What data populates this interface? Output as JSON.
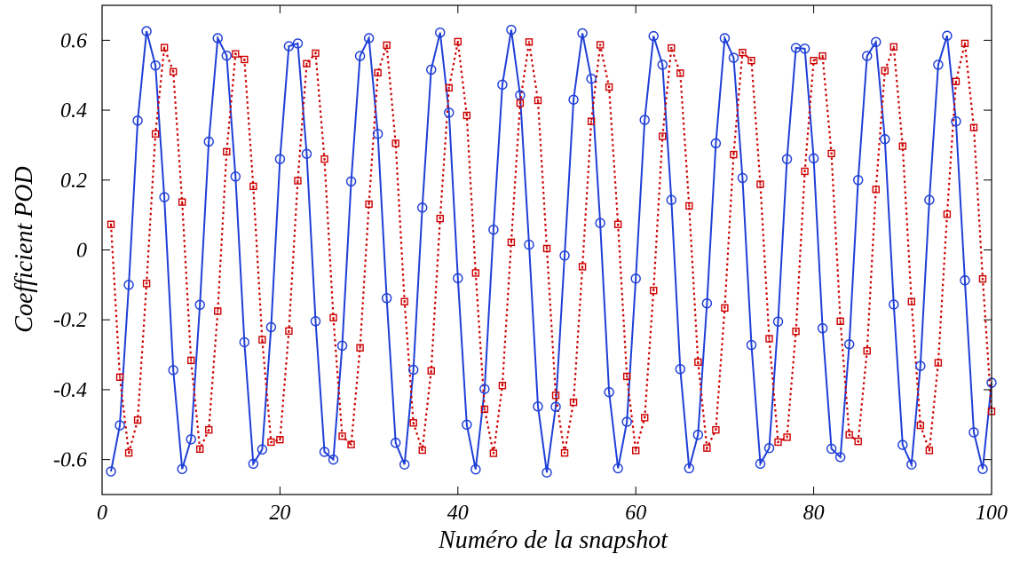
{
  "chart_data": {
    "type": "line",
    "title": "",
    "xlabel": "Numéro de la snapshot",
    "ylabel": "Coefficient POD",
    "xlim": [
      0,
      100
    ],
    "ylim": [
      -0.7,
      0.7
    ],
    "xticks": [
      0,
      20,
      40,
      60,
      80,
      100
    ],
    "xtick_labels": [
      "0",
      "20",
      "40",
      "60",
      "80",
      "100"
    ],
    "yticks": [
      -0.6,
      -0.4,
      -0.2,
      0,
      0.2,
      0.4,
      0.6
    ],
    "ytick_labels": [
      "-0.6",
      "-0.4",
      "-0.2",
      "0",
      "0.2",
      "0.4",
      "0.6"
    ],
    "grid": false,
    "legend": "none",
    "x": [
      1,
      2,
      3,
      4,
      5,
      6,
      7,
      8,
      9,
      10,
      11,
      12,
      13,
      14,
      15,
      16,
      17,
      18,
      19,
      20,
      21,
      22,
      23,
      24,
      25,
      26,
      27,
      28,
      29,
      30,
      31,
      32,
      33,
      34,
      35,
      36,
      37,
      38,
      39,
      40,
      41,
      42,
      43,
      44,
      45,
      46,
      47,
      48,
      49,
      50,
      51,
      52,
      53,
      54,
      55,
      56,
      57,
      58,
      59,
      60,
      61,
      62,
      63,
      64,
      65,
      66,
      67,
      68,
      69,
      70,
      71,
      72,
      73,
      74,
      75,
      76,
      77,
      78,
      79,
      80,
      81,
      82,
      83,
      84,
      85,
      86,
      87,
      88,
      89,
      90,
      91,
      92,
      93,
      94,
      95,
      96,
      97,
      98,
      99,
      100
    ],
    "series": [
      {
        "color": "#1f3fd6",
        "line_style": "solid",
        "marker": "circle",
        "values": [
          -0.634,
          -0.502,
          -0.1,
          0.37,
          0.626,
          0.528,
          0.151,
          -0.344,
          -0.627,
          -0.542,
          -0.157,
          0.31,
          0.606,
          0.556,
          0.21,
          -0.264,
          -0.612,
          -0.571,
          -0.221,
          0.26,
          0.583,
          0.591,
          0.275,
          -0.204,
          -0.578,
          -0.6,
          -0.274,
          0.196,
          0.555,
          0.606,
          0.332,
          -0.138,
          -0.552,
          -0.614,
          -0.343,
          0.121,
          0.516,
          0.622,
          0.393,
          -0.081,
          -0.5,
          -0.628,
          -0.398,
          0.058,
          0.473,
          0.63,
          0.443,
          0.015,
          -0.448,
          -0.637,
          -0.449,
          -0.016,
          0.43,
          0.62,
          0.49,
          0.077,
          -0.407,
          -0.625,
          -0.492,
          -0.082,
          0.372,
          0.612,
          0.53,
          0.143,
          -0.341,
          -0.625,
          -0.529,
          -0.153,
          0.305,
          0.606,
          0.55,
          0.206,
          -0.272,
          -0.612,
          -0.567,
          -0.205,
          0.26,
          0.578,
          0.576,
          0.262,
          -0.224,
          -0.569,
          -0.593,
          -0.27,
          0.2,
          0.555,
          0.595,
          0.317,
          -0.156,
          -0.558,
          -0.614,
          -0.332,
          0.143,
          0.53,
          0.613,
          0.368,
          -0.087,
          -0.522,
          -0.627,
          -0.38
        ]
      },
      {
        "color": "#cc0000",
        "line_style": "dotted",
        "marker": "square",
        "values": [
          0.073,
          -0.364,
          -0.581,
          -0.487,
          -0.096,
          0.332,
          0.579,
          0.51,
          0.137,
          -0.316,
          -0.57,
          -0.515,
          -0.175,
          0.281,
          0.561,
          0.545,
          0.182,
          -0.257,
          -0.55,
          -0.543,
          -0.232,
          0.198,
          0.533,
          0.563,
          0.26,
          -0.194,
          -0.533,
          -0.557,
          -0.28,
          0.131,
          0.507,
          0.586,
          0.305,
          -0.148,
          -0.495,
          -0.573,
          -0.346,
          0.09,
          0.464,
          0.596,
          0.385,
          -0.066,
          -0.456,
          -0.582,
          -0.388,
          0.022,
          0.42,
          0.595,
          0.428,
          0.004,
          -0.416,
          -0.581,
          -0.436,
          -0.048,
          0.368,
          0.587,
          0.466,
          0.073,
          -0.362,
          -0.574,
          -0.48,
          -0.116,
          0.325,
          0.578,
          0.506,
          0.126,
          -0.321,
          -0.567,
          -0.515,
          -0.166,
          0.273,
          0.565,
          0.542,
          0.188,
          -0.254,
          -0.55,
          -0.536,
          -0.233,
          0.225,
          0.542,
          0.555,
          0.276,
          -0.204,
          -0.529,
          -0.548,
          -0.289,
          0.173,
          0.513,
          0.581,
          0.297,
          -0.148,
          -0.502,
          -0.574,
          -0.323,
          0.102,
          0.482,
          0.591,
          0.35,
          -0.083,
          -0.462
        ]
      }
    ]
  }
}
